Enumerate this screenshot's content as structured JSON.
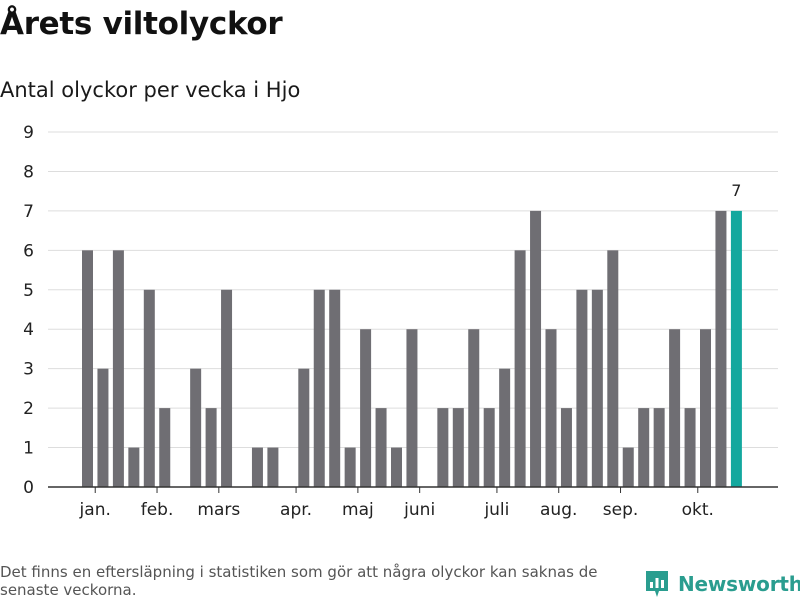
{
  "header": {
    "title": "Årets viltolyckor",
    "subtitle": "Antal olyckor per vecka i Hjo"
  },
  "footer": {
    "note": "Det finns en eftersläpning i statistiken som gör att några olyckor kan saknas de senaste veckorna.",
    "brand": "Newsworthy"
  },
  "colors": {
    "bar": "#6f6e73",
    "highlight": "#13a89e",
    "grid": "#dddddd",
    "axis": "#333333",
    "brand": "#2a9d8f"
  },
  "chart_data": {
    "type": "bar",
    "weeks": [
      1,
      2,
      3,
      4,
      5,
      6,
      7,
      8,
      9,
      10,
      11,
      12,
      13,
      14,
      15,
      16,
      17,
      18,
      19,
      20,
      21,
      22,
      23,
      24,
      25,
      26,
      27,
      28,
      29,
      30,
      31,
      32,
      33,
      34,
      35,
      36,
      37,
      38,
      39,
      40,
      41,
      42,
      43
    ],
    "values": [
      6,
      3,
      6,
      1,
      5,
      2,
      0,
      3,
      2,
      5,
      0,
      1,
      1,
      0,
      3,
      5,
      5,
      1,
      4,
      2,
      1,
      4,
      0,
      2,
      2,
      4,
      2,
      3,
      6,
      7,
      4,
      2,
      5,
      5,
      6,
      1,
      2,
      2,
      4,
      2,
      4,
      7,
      7
    ],
    "highlight_index": 42,
    "highlight_label": "7",
    "ylim": [
      0,
      9
    ],
    "yticks": [
      "0",
      "1",
      "2",
      "3",
      "4",
      "5",
      "6",
      "7",
      "8",
      "9"
    ],
    "month_labels": [
      {
        "label": "jan.",
        "week": 1.5
      },
      {
        "label": "feb.",
        "week": 5.5
      },
      {
        "label": "mars",
        "week": 9.5
      },
      {
        "label": "apr.",
        "week": 14.5
      },
      {
        "label": "maj",
        "week": 18.5
      },
      {
        "label": "juni",
        "week": 22.5
      },
      {
        "label": "juli",
        "week": 27.5
      },
      {
        "label": "aug.",
        "week": 31.5
      },
      {
        "label": "sep.",
        "week": 35.5
      },
      {
        "label": "okt.",
        "week": 40.5
      }
    ],
    "grid": true,
    "legend": "none"
  }
}
